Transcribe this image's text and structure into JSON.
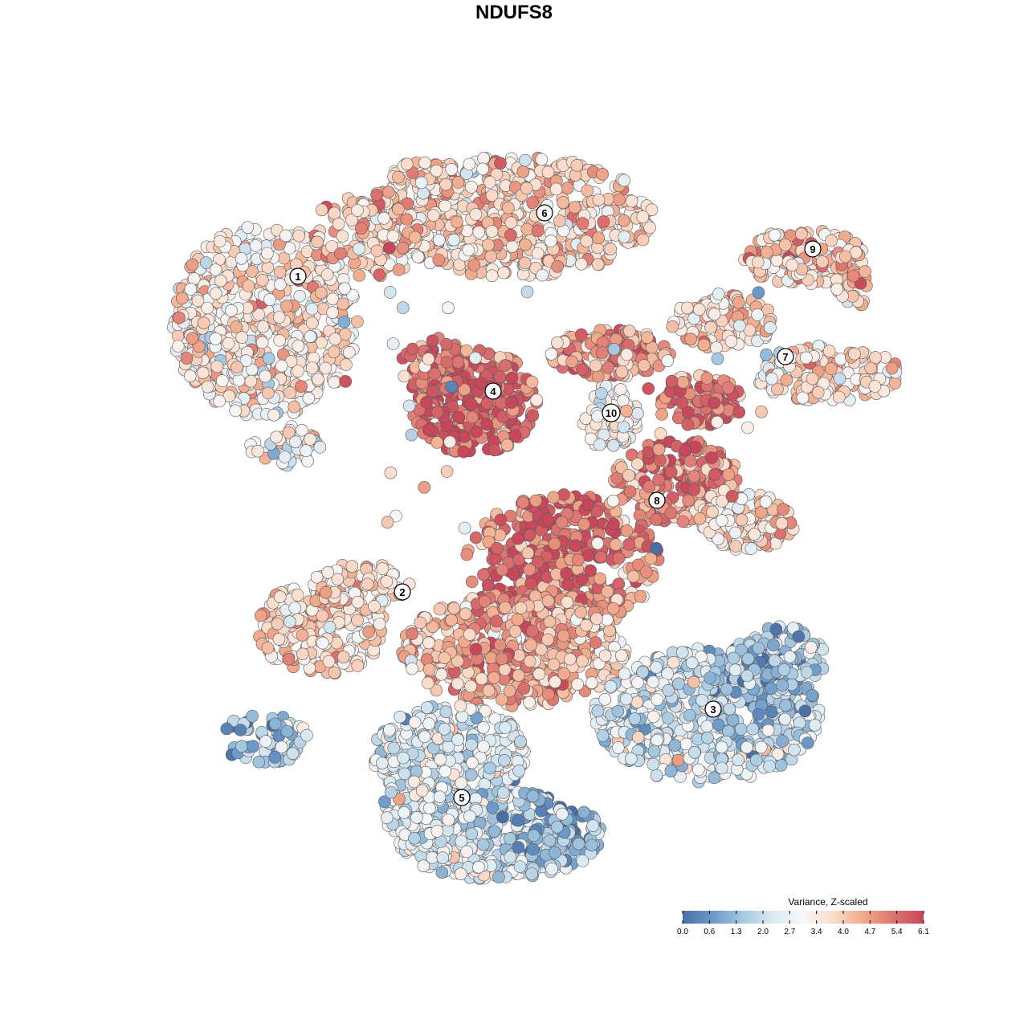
{
  "chart_data": {
    "type": "scatter",
    "title": "NDUFS8",
    "xlabel": "",
    "ylabel": "",
    "grid": false,
    "legend_placement": "bottom-right",
    "color_scale": {
      "title": "Variance, Z-scaled",
      "min": 0.0,
      "max": 6.1,
      "ticks": [
        "0.0",
        "0.6",
        "1.3",
        "2.0",
        "2.7",
        "3.4",
        "4.0",
        "4.7",
        "5.4",
        "6.1"
      ],
      "colors": [
        "#4a6fa5",
        "#6b9ac9",
        "#a6c8e0",
        "#dceaf3",
        "#f7f7f7",
        "#fbdccb",
        "#f1a98a",
        "#dd7370",
        "#c8475a"
      ]
    },
    "clusters": [
      {
        "label": "1",
        "mean_value": 3.5
      },
      {
        "label": "2",
        "mean_value": 3.8
      },
      {
        "label": "3",
        "mean_value": 2.3
      },
      {
        "label": "4",
        "mean_value": 4.8
      },
      {
        "label": "5",
        "mean_value": 2.4
      },
      {
        "label": "6",
        "mean_value": 3.9
      },
      {
        "label": "7",
        "mean_value": 3.7
      },
      {
        "label": "8",
        "mean_value": 4.6
      },
      {
        "label": "9",
        "mean_value": 4.0
      },
      {
        "label": "10",
        "mean_value": 2.9
      }
    ]
  }
}
